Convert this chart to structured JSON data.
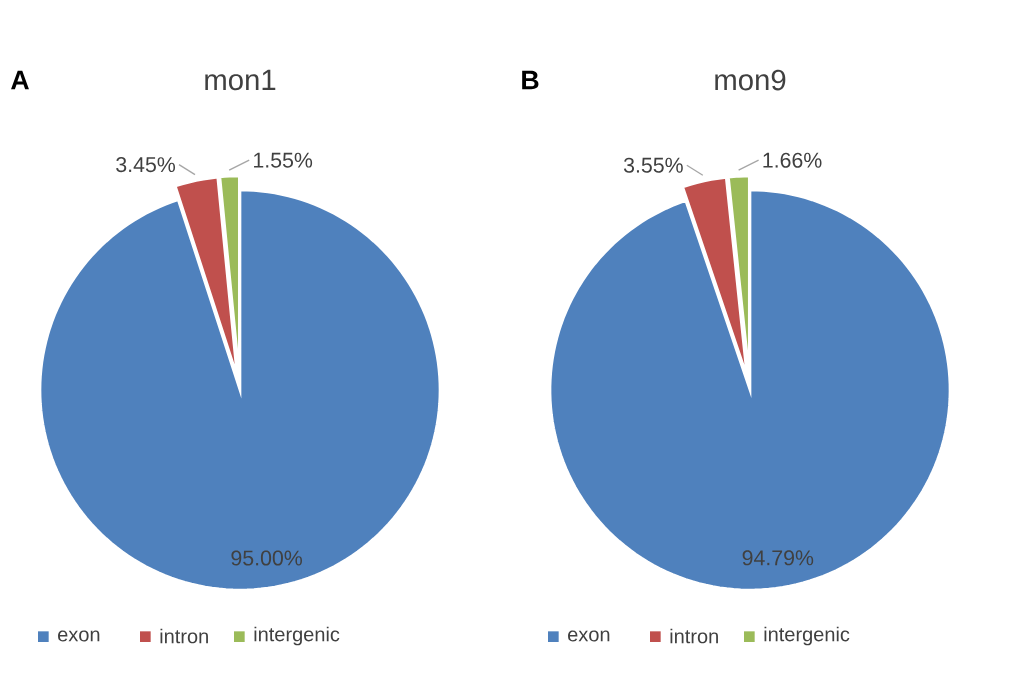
{
  "chart_data": [
    {
      "type": "pie",
      "title": "mon1",
      "categories": [
        "exon",
        "intron",
        "intergenic"
      ],
      "values": [
        95.0,
        3.45,
        1.55
      ],
      "colors": [
        "#4f81bd",
        "#c0504d",
        "#9bbb59"
      ],
      "value_labels": [
        "95.00%",
        "3.45%",
        "1.55%"
      ],
      "legend": "bottom",
      "annotations": [
        "A"
      ]
    },
    {
      "type": "pie",
      "title": "mon9",
      "categories": [
        "exon",
        "intron",
        "intergenic"
      ],
      "values": [
        94.79,
        3.55,
        1.66
      ],
      "colors": [
        "#4f81bd",
        "#c0504d",
        "#9bbb59"
      ],
      "value_labels": [
        "94.79%",
        "3.55%",
        "1.66%"
      ],
      "legend": "bottom",
      "annotations": [
        "B"
      ]
    }
  ]
}
